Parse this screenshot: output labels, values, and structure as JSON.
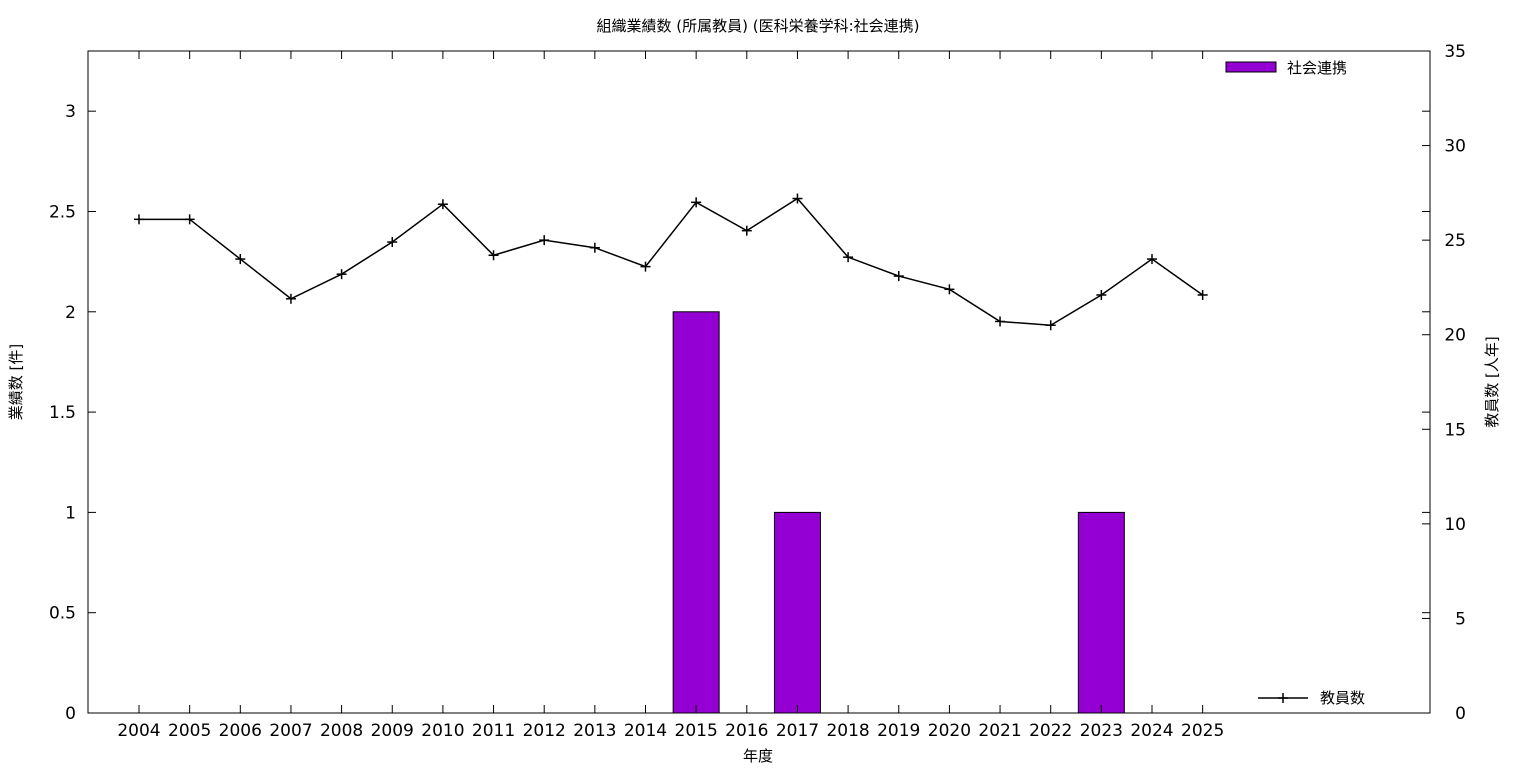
{
  "chart_data": {
    "type": "bar",
    "title": "組織業績数 (所属教員) (医科栄養学科:社会連携)",
    "xlabel": "年度",
    "ylabel": "業績数 [件]",
    "y2label": "教員数 [人年]",
    "categories": [
      "2004",
      "2005",
      "2006",
      "2007",
      "2008",
      "2009",
      "2010",
      "2011",
      "2012",
      "2013",
      "2014",
      "2015",
      "2016",
      "2017",
      "2018",
      "2019",
      "2020",
      "2021",
      "2022",
      "2023",
      "2024",
      "2025"
    ],
    "ylim": [
      0,
      3.3
    ],
    "y2lim": [
      0,
      35
    ],
    "yticks": [
      "0",
      "0.5",
      "1",
      "1.5",
      "2",
      "2.5",
      "3"
    ],
    "y2ticks": [
      "0",
      "5",
      "10",
      "15",
      "20",
      "25",
      "30",
      "35"
    ],
    "series": [
      {
        "name": "社会連携",
        "type": "bar",
        "axis": "left",
        "color": "#9400d3",
        "values": [
          0,
          0,
          0,
          0,
          0,
          0,
          0,
          0,
          0,
          0,
          0,
          2,
          0,
          1,
          0,
          0,
          0,
          0,
          0,
          1,
          0,
          0
        ]
      },
      {
        "name": "教員数",
        "type": "line",
        "axis": "right",
        "color": "#000000",
        "values": [
          26.1,
          26.1,
          24.0,
          21.9,
          23.2,
          24.9,
          26.9,
          24.2,
          25.0,
          24.6,
          23.6,
          27.0,
          25.5,
          27.2,
          24.1,
          23.1,
          22.4,
          20.7,
          20.5,
          22.1,
          24.0,
          22.1
        ]
      }
    ],
    "legend": [
      "top-right",
      "bottom-right"
    ],
    "grid": false
  }
}
